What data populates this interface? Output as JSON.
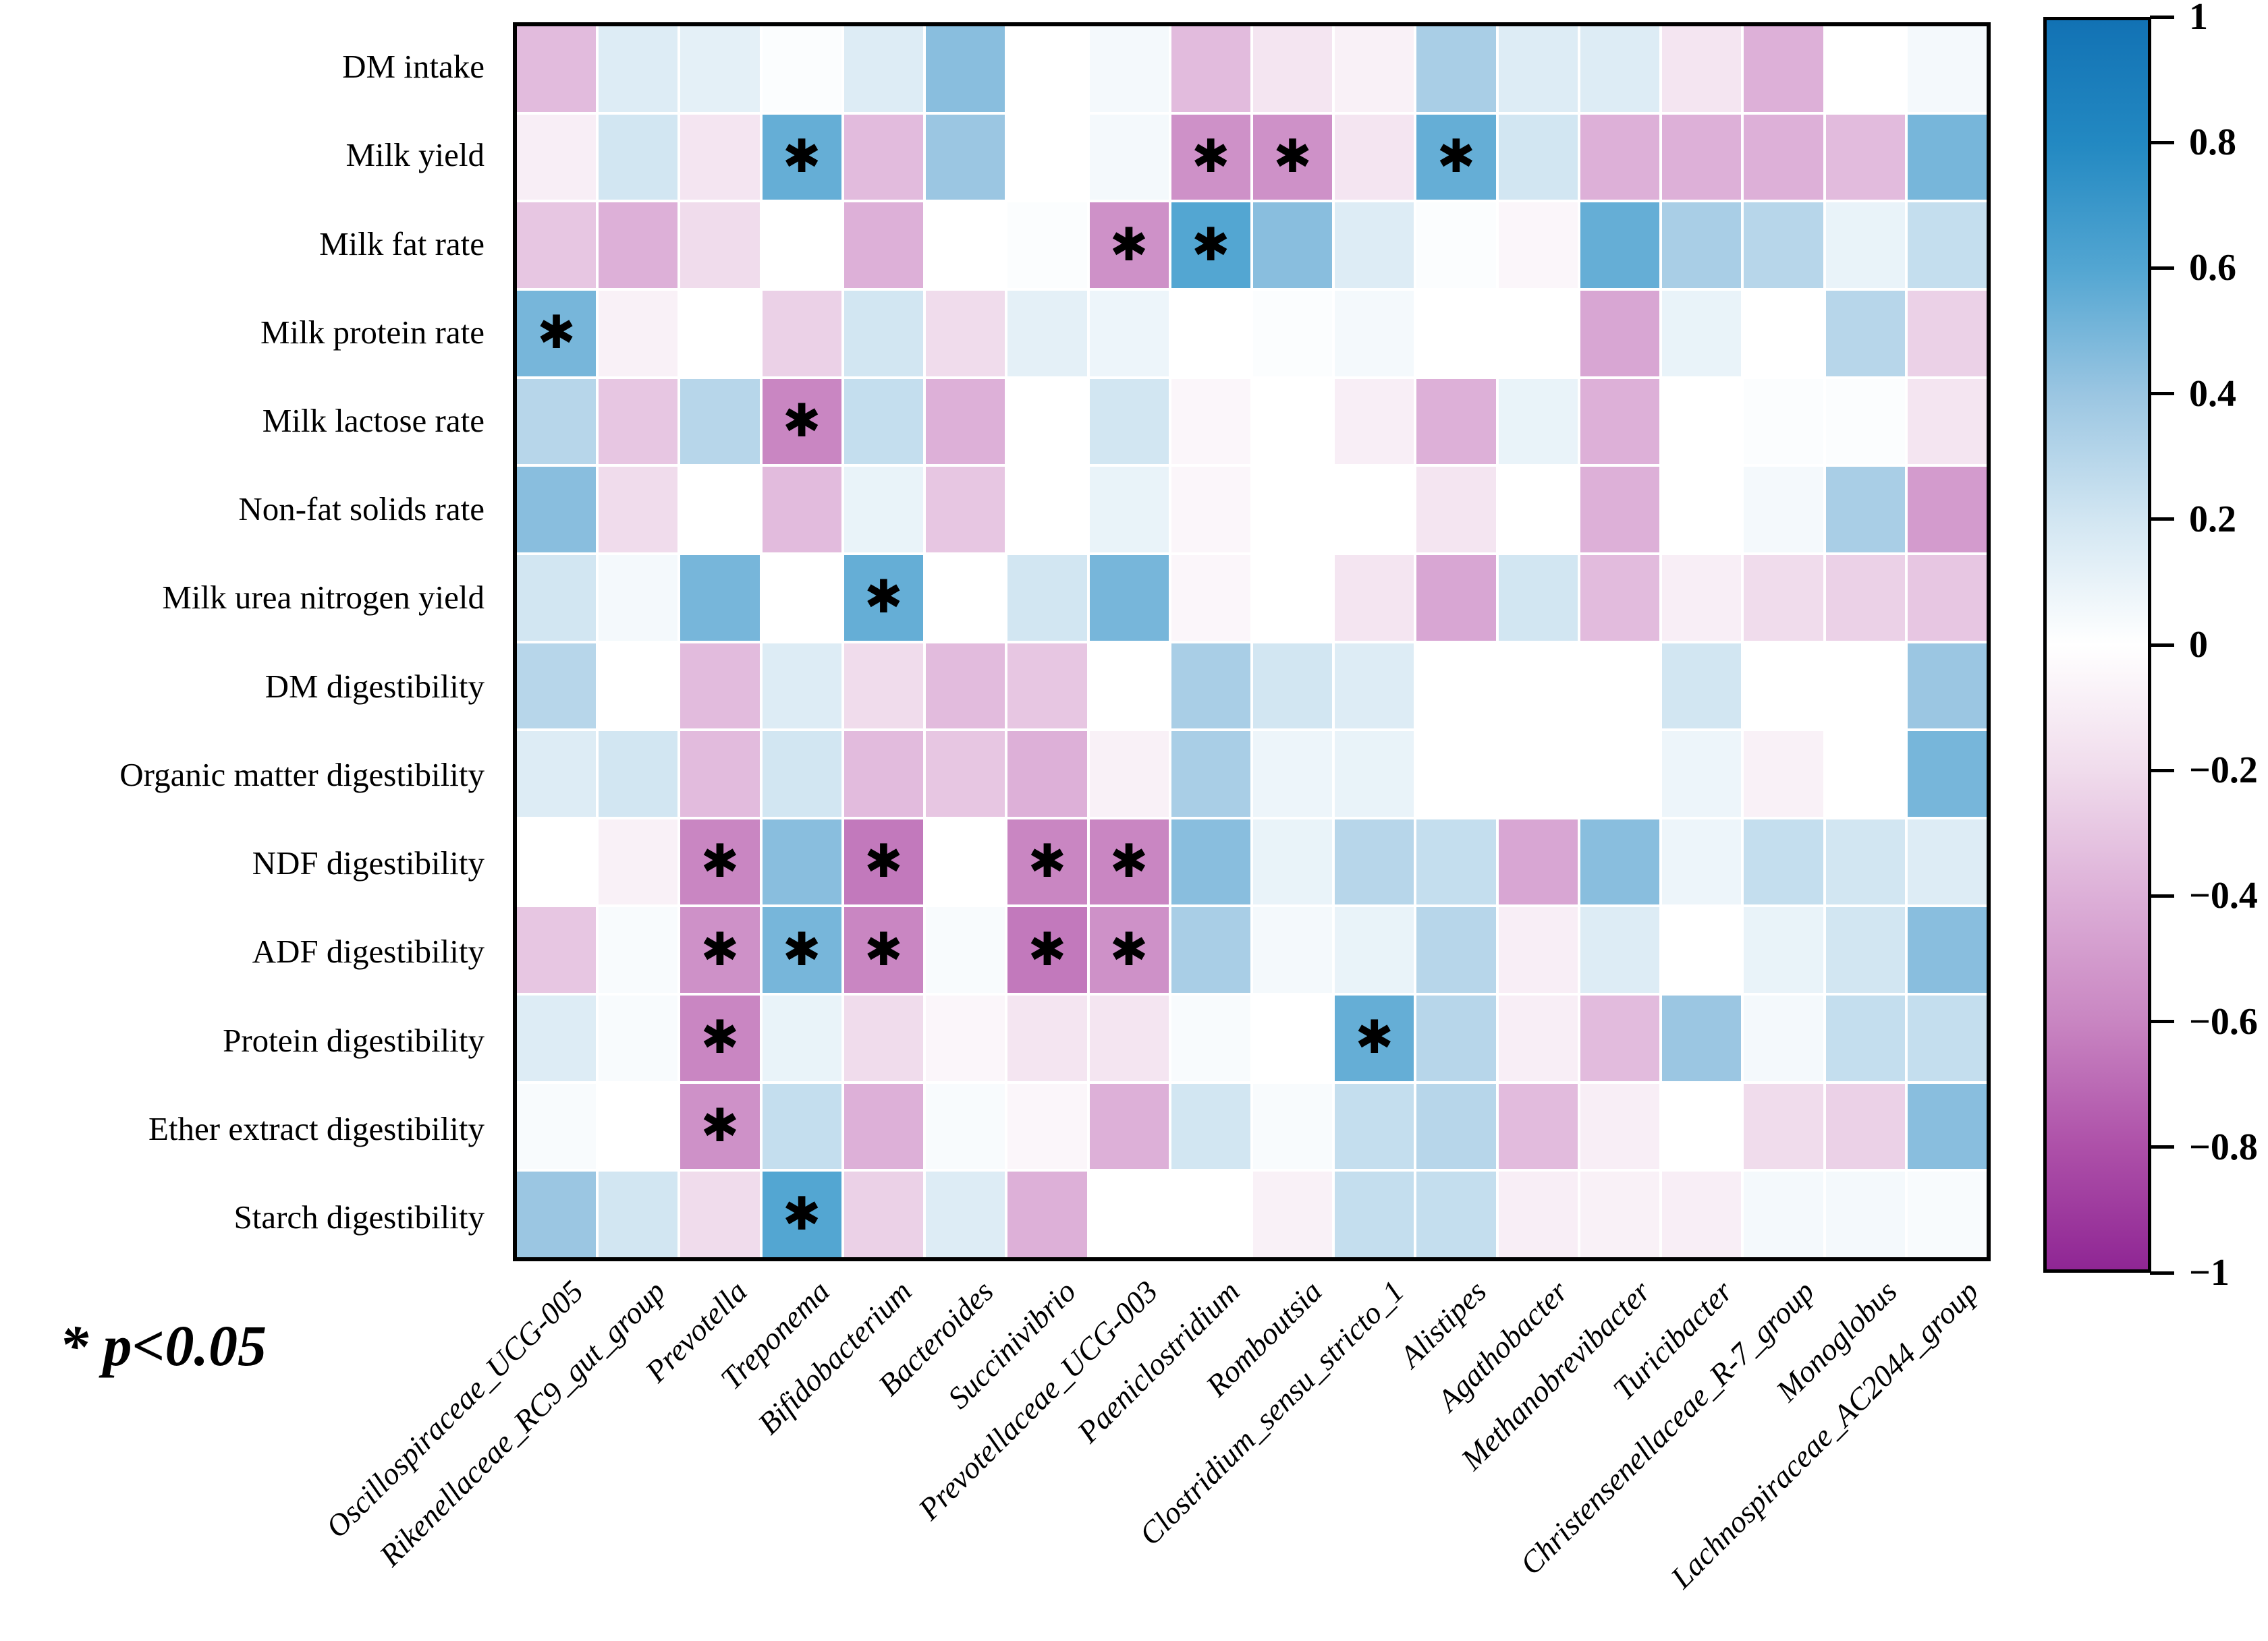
{
  "chart_data": {
    "type": "heatmap",
    "significance_note": "* p<0.05",
    "asterisk_glyph": "✱",
    "rows": [
      "DM intake",
      "Milk yield",
      "Milk fat rate",
      "Milk protein rate",
      "Milk lactose rate",
      "Non-fat solids rate",
      "Milk urea nitrogen yield",
      "DM digestibility",
      "Organic matter digestibility",
      "NDF digestibility",
      "ADF digestibility",
      "Protein digestibility",
      "Ether extract digestibility",
      "Starch digestibility"
    ],
    "columns": [
      "Oscillospiraceae_UCG-005",
      "Rikenellaceae_RC9_gut_group",
      "Prevotella",
      "Treponema",
      "Bifidobacterium",
      "Bacteroides",
      "Succinivibrio",
      "Prevotellaceae_UCG-003",
      "Paeniclostridium",
      "Romboutsia",
      "Clostridium_sensu_stricto_1",
      "Alistipes",
      "Agathobacter",
      "Methanobrevibacter",
      "Turicibacter",
      "Christensenellaceae_R-7_group",
      "Monoglobus",
      "Lachnospiraceae_AC2044_group"
    ],
    "values": [
      [
        -0.35,
        0.15,
        0.12,
        0.02,
        0.15,
        0.45,
        0.0,
        0.05,
        -0.35,
        -0.15,
        -0.08,
        0.35,
        0.15,
        0.15,
        -0.15,
        -0.4,
        0.0,
        0.05
      ],
      [
        -0.1,
        0.2,
        -0.15,
        0.55,
        -0.35,
        0.4,
        0.0,
        0.05,
        -0.55,
        -0.55,
        -0.15,
        0.55,
        0.2,
        -0.4,
        -0.4,
        -0.4,
        -0.35,
        0.5
      ],
      [
        -0.3,
        -0.4,
        -0.2,
        0.0,
        -0.4,
        0.0,
        0.02,
        -0.55,
        0.6,
        0.45,
        0.15,
        0.02,
        -0.05,
        0.55,
        0.35,
        0.3,
        0.1,
        0.25
      ],
      [
        0.5,
        -0.08,
        0.0,
        -0.25,
        0.2,
        -0.2,
        0.12,
        0.08,
        0.0,
        0.02,
        0.05,
        0.0,
        0.0,
        -0.45,
        0.1,
        0.0,
        0.3,
        -0.25
      ],
      [
        0.3,
        -0.3,
        0.3,
        -0.6,
        0.25,
        -0.4,
        0.0,
        0.2,
        -0.05,
        0.0,
        -0.1,
        -0.4,
        0.1,
        -0.4,
        0.0,
        0.02,
        0.02,
        -0.15
      ],
      [
        0.45,
        -0.2,
        0.0,
        -0.35,
        0.1,
        -0.3,
        0.0,
        0.1,
        -0.05,
        0.0,
        0.0,
        -0.15,
        0.0,
        -0.4,
        0.0,
        0.05,
        0.35,
        -0.5
      ],
      [
        0.2,
        0.05,
        0.5,
        0.0,
        0.55,
        0.0,
        0.2,
        0.5,
        -0.05,
        0.0,
        -0.15,
        -0.45,
        0.2,
        -0.35,
        -0.1,
        -0.2,
        -0.25,
        -0.3
      ],
      [
        0.3,
        0.0,
        -0.35,
        0.15,
        -0.2,
        -0.35,
        -0.3,
        0.0,
        0.35,
        0.2,
        0.15,
        0.0,
        0.0,
        0.0,
        0.2,
        0.0,
        0.0,
        0.4
      ],
      [
        0.15,
        0.2,
        -0.35,
        0.2,
        -0.35,
        -0.3,
        -0.4,
        -0.08,
        0.35,
        0.08,
        0.1,
        0.0,
        0.0,
        0.0,
        0.08,
        -0.08,
        0.0,
        0.5
      ],
      [
        0.0,
        -0.08,
        -0.6,
        0.45,
        -0.65,
        0.0,
        -0.6,
        -0.6,
        0.45,
        0.1,
        0.3,
        0.25,
        -0.45,
        0.45,
        0.08,
        0.25,
        0.2,
        0.15
      ],
      [
        -0.3,
        0.03,
        -0.55,
        0.5,
        -0.6,
        0.03,
        -0.65,
        -0.55,
        0.35,
        0.05,
        0.1,
        0.3,
        -0.1,
        0.15,
        0.0,
        0.1,
        0.2,
        0.45
      ],
      [
        0.15,
        0.03,
        -0.6,
        0.1,
        -0.2,
        -0.05,
        -0.15,
        -0.15,
        0.03,
        0.0,
        0.55,
        0.3,
        -0.1,
        -0.35,
        0.4,
        0.05,
        0.25,
        0.25
      ],
      [
        0.03,
        0.0,
        -0.55,
        0.25,
        -0.4,
        0.03,
        -0.05,
        -0.4,
        0.2,
        0.03,
        0.25,
        0.3,
        -0.35,
        -0.1,
        0.0,
        -0.2,
        -0.25,
        0.45
      ],
      [
        0.4,
        0.2,
        -0.2,
        0.6,
        -0.25,
        0.15,
        -0.4,
        0.0,
        0.0,
        -0.08,
        0.25,
        0.25,
        -0.1,
        -0.08,
        -0.1,
        0.05,
        0.05,
        0.03
      ]
    ],
    "significant": [
      [
        0,
        0,
        0,
        0,
        0,
        0,
        0,
        0,
        0,
        0,
        0,
        0,
        0,
        0,
        0,
        0,
        0,
        0
      ],
      [
        0,
        0,
        0,
        1,
        0,
        0,
        0,
        0,
        1,
        1,
        0,
        1,
        0,
        0,
        0,
        0,
        0,
        0
      ],
      [
        0,
        0,
        0,
        0,
        0,
        0,
        0,
        1,
        1,
        0,
        0,
        0,
        0,
        0,
        0,
        0,
        0,
        0
      ],
      [
        1,
        0,
        0,
        0,
        0,
        0,
        0,
        0,
        0,
        0,
        0,
        0,
        0,
        0,
        0,
        0,
        0,
        0
      ],
      [
        0,
        0,
        0,
        1,
        0,
        0,
        0,
        0,
        0,
        0,
        0,
        0,
        0,
        0,
        0,
        0,
        0,
        0
      ],
      [
        0,
        0,
        0,
        0,
        0,
        0,
        0,
        0,
        0,
        0,
        0,
        0,
        0,
        0,
        0,
        0,
        0,
        0
      ],
      [
        0,
        0,
        0,
        0,
        1,
        0,
        0,
        0,
        0,
        0,
        0,
        0,
        0,
        0,
        0,
        0,
        0,
        0
      ],
      [
        0,
        0,
        0,
        0,
        0,
        0,
        0,
        0,
        0,
        0,
        0,
        0,
        0,
        0,
        0,
        0,
        0,
        0
      ],
      [
        0,
        0,
        0,
        0,
        0,
        0,
        0,
        0,
        0,
        0,
        0,
        0,
        0,
        0,
        0,
        0,
        0,
        0
      ],
      [
        0,
        0,
        1,
        0,
        1,
        0,
        1,
        1,
        0,
        0,
        0,
        0,
        0,
        0,
        0,
        0,
        0,
        0
      ],
      [
        0,
        0,
        1,
        1,
        1,
        0,
        1,
        1,
        0,
        0,
        0,
        0,
        0,
        0,
        0,
        0,
        0,
        0
      ],
      [
        0,
        0,
        1,
        0,
        0,
        0,
        0,
        0,
        0,
        0,
        1,
        0,
        0,
        0,
        0,
        0,
        0,
        0
      ],
      [
        0,
        0,
        1,
        0,
        0,
        0,
        0,
        0,
        0,
        0,
        0,
        0,
        0,
        0,
        0,
        0,
        0,
        0
      ],
      [
        0,
        0,
        0,
        1,
        0,
        0,
        0,
        0,
        0,
        0,
        0,
        0,
        0,
        0,
        0,
        0,
        0,
        0
      ]
    ],
    "colorbar": {
      "min": -1,
      "max": 1,
      "tick_values": [
        1,
        0.8,
        0.6,
        0.4,
        0.2,
        0,
        -0.2,
        -0.4,
        -0.6,
        -0.8,
        -1
      ],
      "tick_labels": [
        "1",
        "0.8",
        "0.6",
        "0.4",
        "0.2",
        "0",
        "−0.2",
        "−0.4",
        "−0.6",
        "−0.8",
        "−1"
      ],
      "gradient_stops": [
        {
          "value": 1.0,
          "color": "#1272b4"
        },
        {
          "value": 0.8,
          "color": "#2389c2"
        },
        {
          "value": 0.6,
          "color": "#53a6d2"
        },
        {
          "value": 0.4,
          "color": "#9bc6e2"
        },
        {
          "value": 0.2,
          "color": "#d2e6f2"
        },
        {
          "value": 0.0,
          "color": "#ffffff"
        },
        {
          "value": -0.2,
          "color": "#f0dcec"
        },
        {
          "value": -0.4,
          "color": "#ddb0d8"
        },
        {
          "value": -0.6,
          "color": "#c986c2"
        },
        {
          "value": -0.8,
          "color": "#ae51a9"
        },
        {
          "value": -1.0,
          "color": "#8f2694"
        }
      ]
    }
  }
}
